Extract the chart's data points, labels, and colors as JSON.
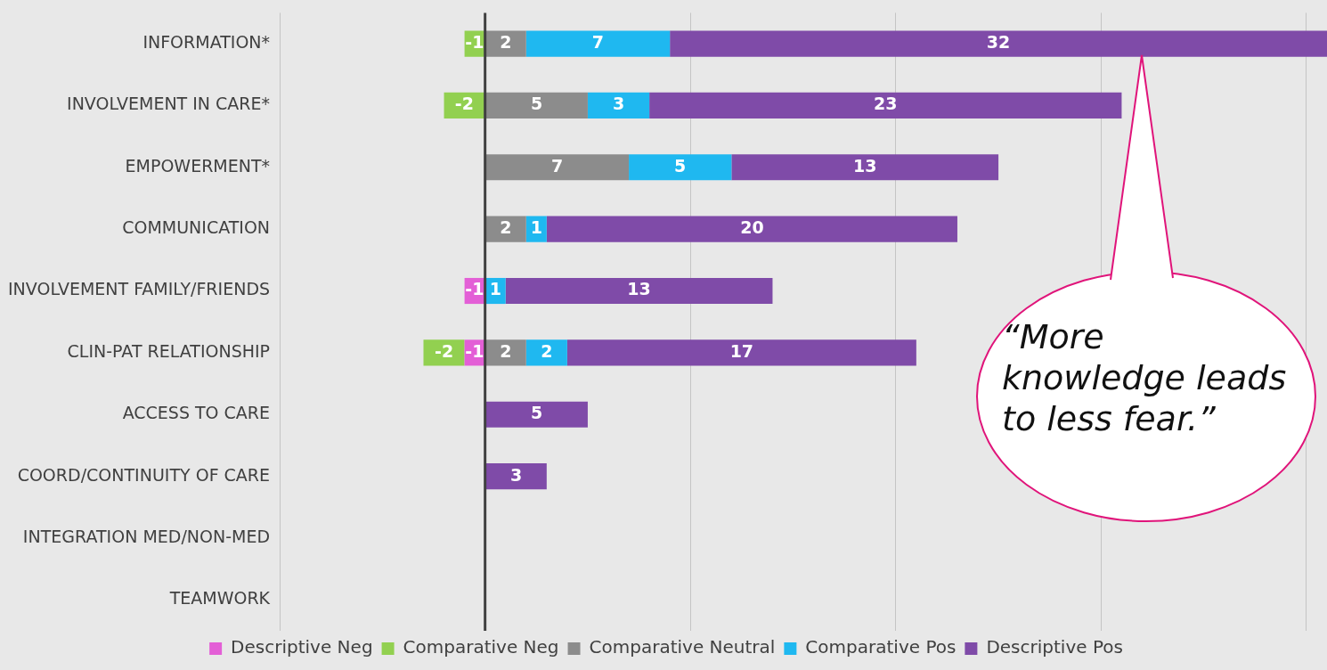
{
  "chart_data": {
    "type": "bar",
    "orientation": "horizontal",
    "stacked": true,
    "categories": [
      "INFORMATION*",
      "INVOLVEMENT IN CARE*",
      "EMPOWERMENT*",
      "COMMUNICATION",
      "INVOLVEMENT FAMILY/FRIENDS",
      "CLIN-PAT RELATIONSHIP",
      "ACCESS TO CARE",
      "COORD/CONTINUITY OF CARE",
      "INTEGRATION MED/NON-MED",
      "TEAMWORK"
    ],
    "series": [
      {
        "name": "Descriptive Neg",
        "color": "#e35fd6",
        "values": [
          null,
          null,
          null,
          null,
          -1,
          -1,
          null,
          null,
          null,
          null
        ]
      },
      {
        "name": "Comparative Neg",
        "color": "#92d050",
        "values": [
          -1,
          -2,
          null,
          null,
          null,
          -2,
          null,
          null,
          null,
          null
        ]
      },
      {
        "name": "Comparative Neutral",
        "color": "#8c8c8c",
        "values": [
          2,
          5,
          7,
          2,
          null,
          2,
          null,
          null,
          null,
          null
        ]
      },
      {
        "name": "Comparative Pos",
        "color": "#1fb8f0",
        "values": [
          7,
          3,
          5,
          1,
          1,
          2,
          null,
          null,
          null,
          null
        ]
      },
      {
        "name": "Descriptive Pos",
        "color": "#7f4ba8",
        "values": [
          32,
          23,
          13,
          20,
          13,
          17,
          5,
          3,
          null,
          null
        ]
      }
    ],
    "xlim": [
      -10,
      41
    ],
    "ref_lines": [
      {
        "axis": "x",
        "value": 0,
        "color": "#404040"
      }
    ],
    "tick_labels": "y",
    "grid": "x",
    "legend": "bottom",
    "data_labels": true,
    "annotations": [
      "“More knowledge leads to less fear.”"
    ]
  }
}
